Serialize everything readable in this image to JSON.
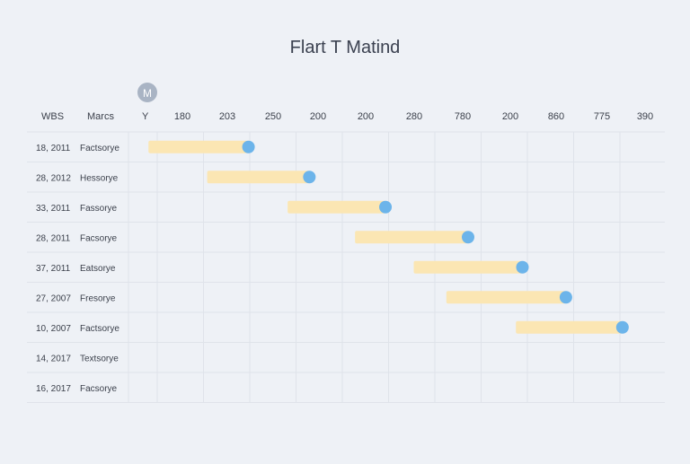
{
  "title": "Flart T Matind",
  "badge_letter": "M",
  "header": {
    "wbs_label": "WBS",
    "marcs_label": "Marcs",
    "y_label": "Y"
  },
  "chart_data": {
    "type": "gantt",
    "title": "Flart T Matind",
    "x_tick_labels": [
      "180",
      "203",
      "250",
      "200",
      "200",
      "280",
      "780",
      "200",
      "860",
      "775",
      "390"
    ],
    "rows": [
      {
        "wbs": "18, 2011",
        "marcs": "Factsorye",
        "bar_start_slot": 0.15,
        "bar_end_slot": 2.45
      },
      {
        "wbs": "28, 2012",
        "marcs": "Hessorye",
        "bar_start_slot": 1.5,
        "bar_end_slot": 3.85
      },
      {
        "wbs": "33, 2011",
        "marcs": "Fassorye",
        "bar_start_slot": 3.35,
        "bar_end_slot": 5.6
      },
      {
        "wbs": "28, 2011",
        "marcs": "Facsorye",
        "bar_start_slot": 4.9,
        "bar_end_slot": 7.5
      },
      {
        "wbs": "37, 2011",
        "marcs": "Eatsorye",
        "bar_start_slot": 6.25,
        "bar_end_slot": 8.75
      },
      {
        "wbs": "27, 2007",
        "marcs": "Fresorye",
        "bar_start_slot": 7.0,
        "bar_end_slot": 9.75
      },
      {
        "wbs": "10, 2007",
        "marcs": "Factsorye",
        "bar_start_slot": 8.6,
        "bar_end_slot": 11.05
      },
      {
        "wbs": "14, 2017",
        "marcs": "Textsorye",
        "bar_start_slot": null,
        "bar_end_slot": null
      },
      {
        "wbs": "16, 2017",
        "marcs": "Facsorye",
        "bar_start_slot": null,
        "bar_end_slot": null
      }
    ],
    "colors": {
      "bar": "#fbe6b3",
      "endpoint": "#6cb4ea",
      "grid": "#dfe3ea",
      "badge": "#a9b4c4"
    }
  }
}
